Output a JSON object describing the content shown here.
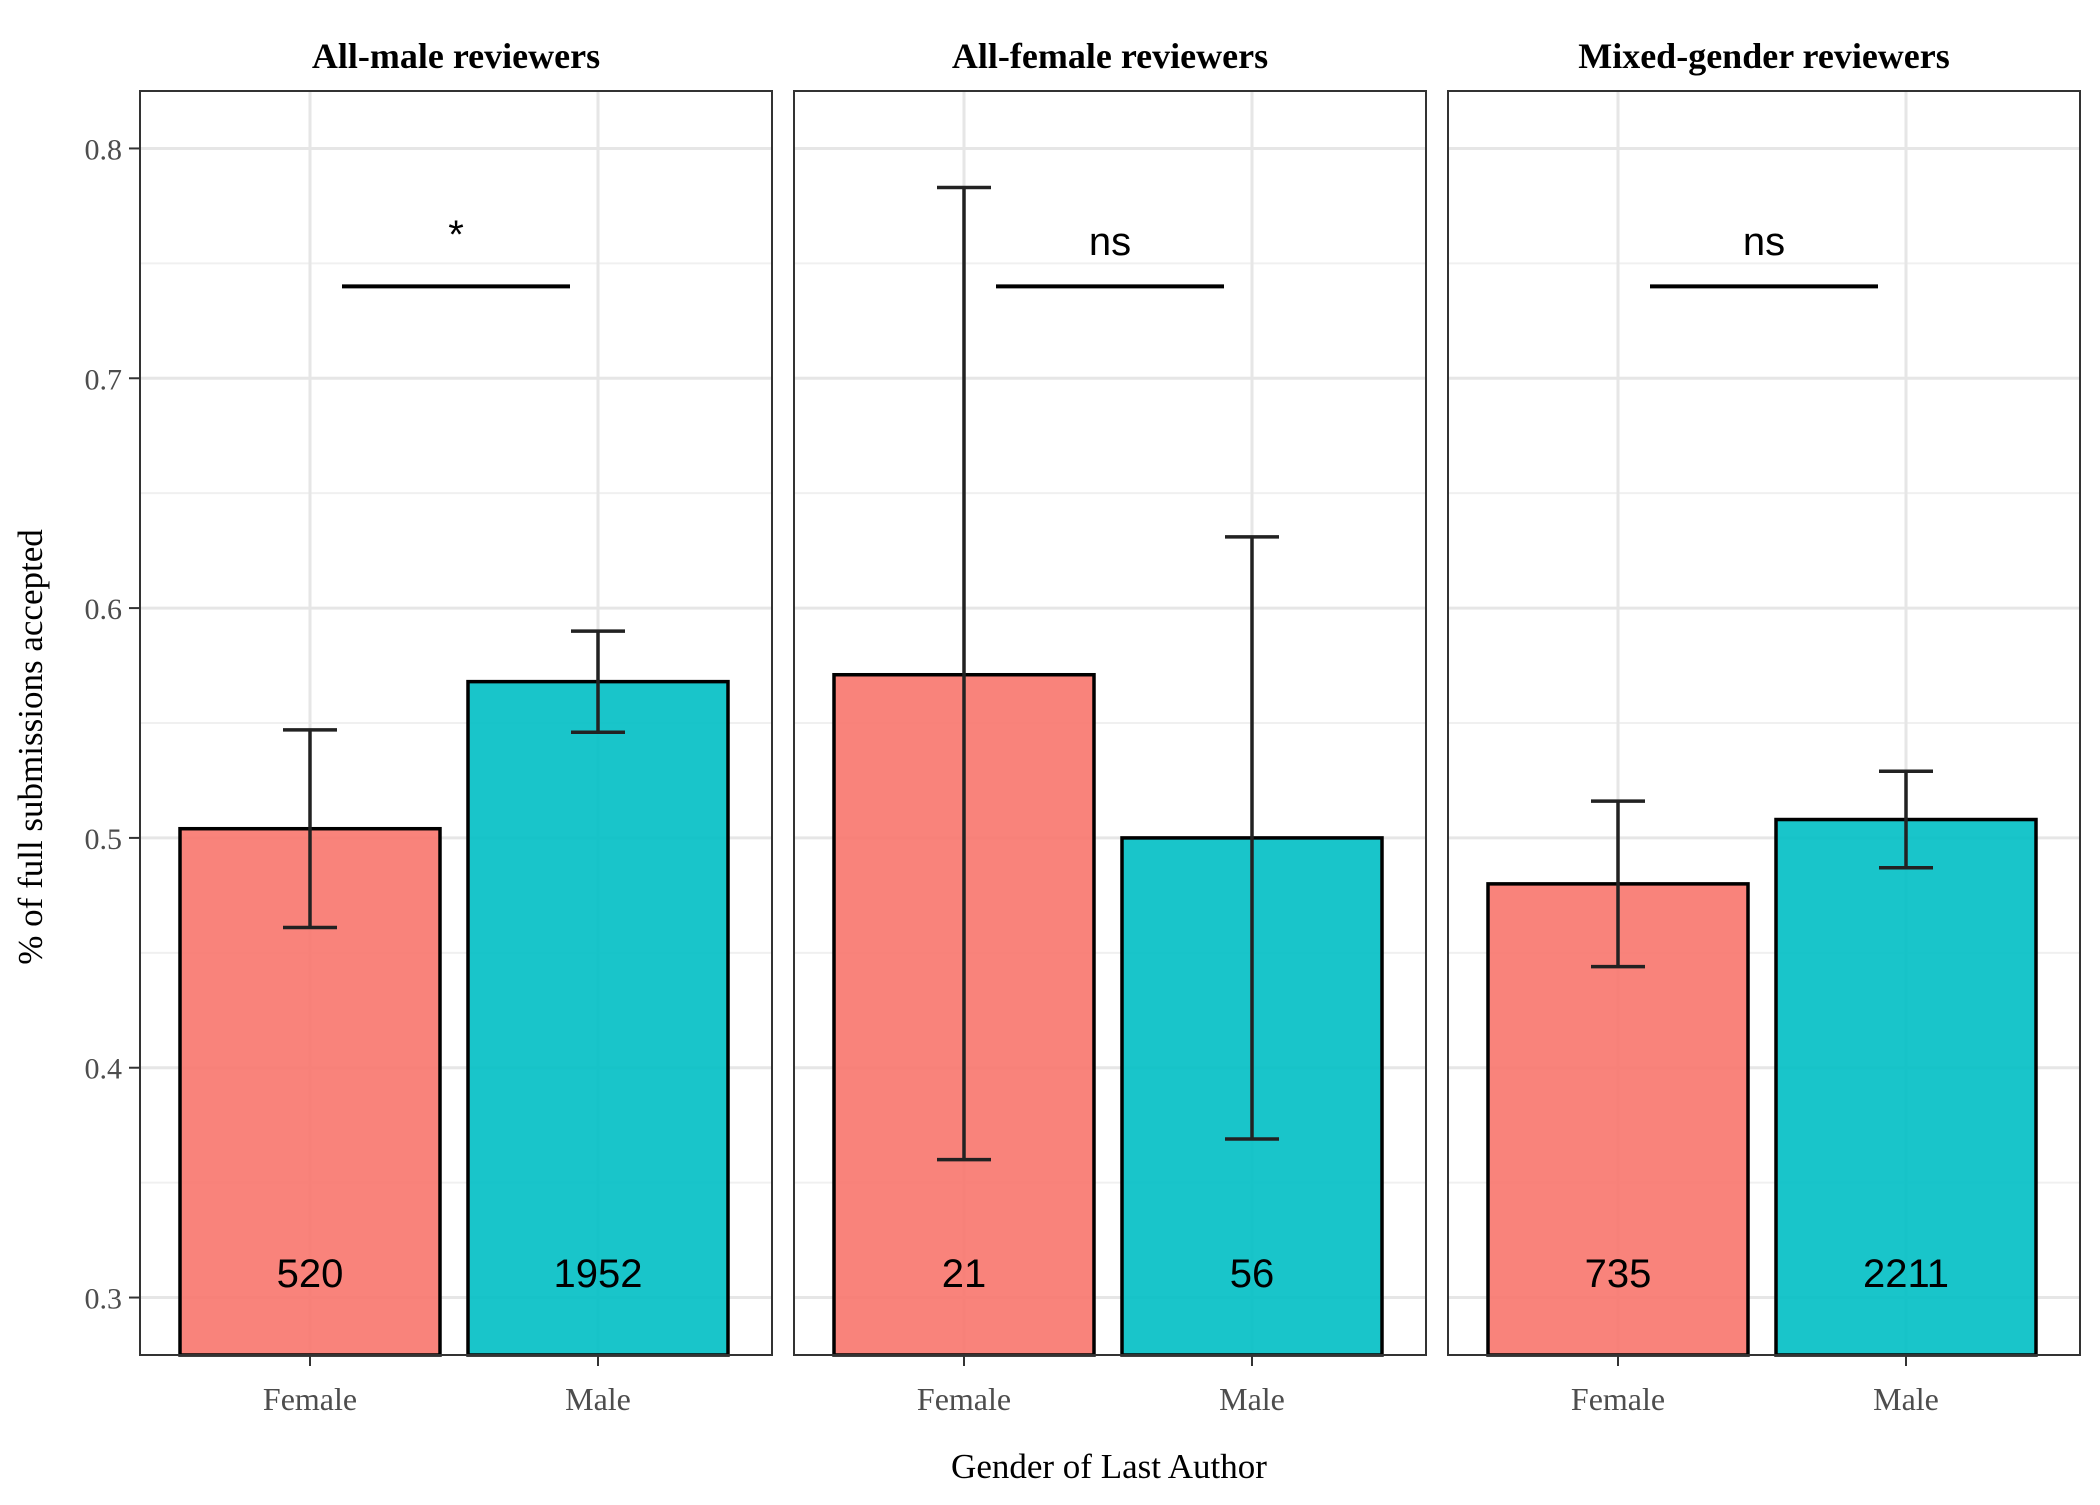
{
  "chart_data": {
    "type": "bar",
    "ylabel": "% of full submissions accepted",
    "xlabel": "Gender of Last Author",
    "ylim": [
      0.275,
      0.825
    ],
    "yticks": [
      0.3,
      0.4,
      0.5,
      0.6,
      0.7,
      0.8
    ],
    "ytick_labels": [
      "0.3",
      "0.4",
      "0.5",
      "0.6",
      "0.7",
      "0.8"
    ],
    "categories": [
      "Female",
      "Male"
    ],
    "colors": {
      "Female": "#F8766D",
      "Male": "#00BFC4"
    },
    "grid": true,
    "significance_bar_y": 0.74,
    "panels": [
      {
        "title": "All-male reviewers",
        "significance": "*",
        "bars": [
          {
            "category": "Female",
            "value": 0.504,
            "error_low": 0.461,
            "error_high": 0.547,
            "n": "520"
          },
          {
            "category": "Male",
            "value": 0.568,
            "error_low": 0.546,
            "error_high": 0.59,
            "n": "1952"
          }
        ]
      },
      {
        "title": "All-female reviewers",
        "significance": "ns",
        "bars": [
          {
            "category": "Female",
            "value": 0.571,
            "error_low": 0.36,
            "error_high": 0.783,
            "n": "21"
          },
          {
            "category": "Male",
            "value": 0.5,
            "error_low": 0.369,
            "error_high": 0.631,
            "n": "56"
          }
        ]
      },
      {
        "title": "Mixed-gender reviewers",
        "significance": "ns",
        "bars": [
          {
            "category": "Female",
            "value": 0.48,
            "error_low": 0.444,
            "error_high": 0.516,
            "n": "735"
          },
          {
            "category": "Male",
            "value": 0.508,
            "error_low": 0.487,
            "error_high": 0.529,
            "n": "2211"
          }
        ]
      }
    ]
  }
}
